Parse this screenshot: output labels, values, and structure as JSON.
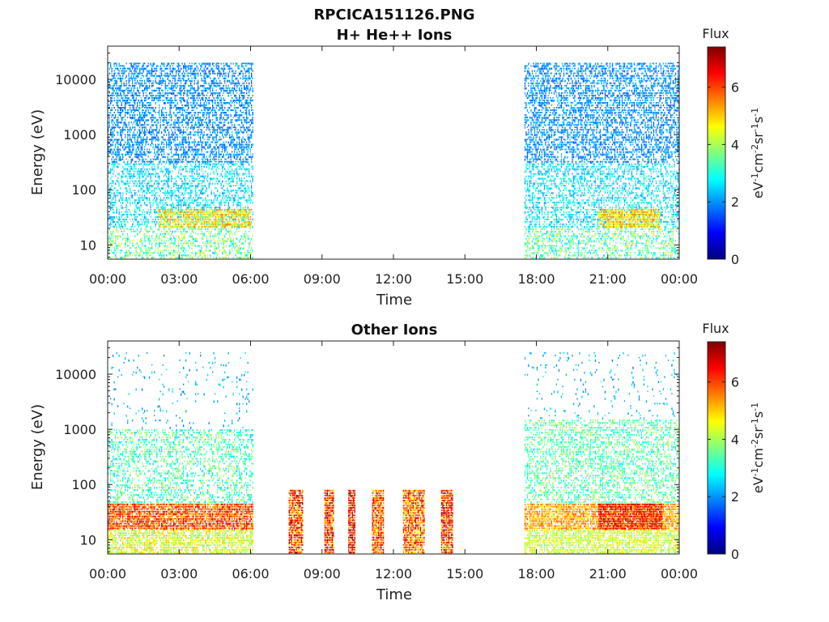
{
  "figure": {
    "title": "RPCICA151126.PNG"
  },
  "colormap": [
    "#00007f",
    "#0000ff",
    "#007fff",
    "#00ffff",
    "#7fff7f",
    "#ffff00",
    "#ff7f00",
    "#ff0000",
    "#7f0000"
  ],
  "chart_data": [
    {
      "type": "heatmap",
      "title": "H+ He++ Ions",
      "xlabel": "Time",
      "ylabel": "Energy (eV)",
      "x_ticks": [
        "00:00",
        "03:00",
        "06:00",
        "09:00",
        "12:00",
        "15:00",
        "18:00",
        "21:00",
        "00:00"
      ],
      "x_range_hours": [
        0,
        24
      ],
      "y_scale": "log",
      "y_range_ev": [
        5.5,
        40000
      ],
      "y_ticks": [
        {
          "label": "10",
          "value": 10
        },
        {
          "label": "100",
          "value": 100
        },
        {
          "label": "1000",
          "value": 1000
        },
        {
          "label": "10000",
          "value": 10000
        }
      ],
      "colorbar": {
        "label": "Flux",
        "units": "eV-1cm-2sr-1s-1",
        "range": [
          0,
          7.4
        ],
        "ticks": [
          "0",
          "2",
          "4",
          "6"
        ]
      },
      "data_intervals_hours": [
        [
          0,
          6.1
        ],
        [
          17.5,
          24
        ]
      ],
      "regions": [
        {
          "t_start": 0,
          "t_end": 6.1,
          "e_min": 5.5,
          "e_max": 20,
          "flux_min": 2.4,
          "flux_max": 4.6,
          "density": 0.45
        },
        {
          "t_start": 0,
          "t_end": 6.1,
          "e_min": 20,
          "e_max": 300,
          "flux_min": 2.0,
          "flux_max": 3.2,
          "density": 0.45
        },
        {
          "t_start": 0,
          "t_end": 6.1,
          "e_min": 300,
          "e_max": 20000,
          "flux_min": 1.5,
          "flux_max": 2.4,
          "density": 0.55
        },
        {
          "t_start": 2.1,
          "t_end": 6.0,
          "e_min": 20,
          "e_max": 45,
          "flux_min": 4.0,
          "flux_max": 5.6,
          "density": 0.8
        },
        {
          "t_start": 17.5,
          "t_end": 24,
          "e_min": 5.5,
          "e_max": 20,
          "flux_min": 2.4,
          "flux_max": 4.4,
          "density": 0.45
        },
        {
          "t_start": 17.5,
          "t_end": 24,
          "e_min": 20,
          "e_max": 300,
          "flux_min": 2.0,
          "flux_max": 3.2,
          "density": 0.45
        },
        {
          "t_start": 17.5,
          "t_end": 24,
          "e_min": 300,
          "e_max": 20000,
          "flux_min": 1.5,
          "flux_max": 2.4,
          "density": 0.55
        },
        {
          "t_start": 20.6,
          "t_end": 23.2,
          "e_min": 20,
          "e_max": 45,
          "flux_min": 4.2,
          "flux_max": 5.6,
          "density": 0.85
        }
      ]
    },
    {
      "type": "heatmap",
      "title": "Other Ions",
      "xlabel": "Time",
      "ylabel": "Energy (eV)",
      "x_ticks": [
        "00:00",
        "03:00",
        "06:00",
        "09:00",
        "12:00",
        "15:00",
        "18:00",
        "21:00",
        "00:00"
      ],
      "x_range_hours": [
        0,
        24
      ],
      "y_scale": "log",
      "y_range_ev": [
        5.5,
        40000
      ],
      "y_ticks": [
        {
          "label": "10",
          "value": 10
        },
        {
          "label": "100",
          "value": 100
        },
        {
          "label": "1000",
          "value": 1000
        },
        {
          "label": "10000",
          "value": 10000
        }
      ],
      "colorbar": {
        "label": "Flux",
        "units": "eV-1cm-2sr-1s-1",
        "range": [
          0,
          7.4
        ],
        "ticks": [
          "0",
          "2",
          "4",
          "6"
        ]
      },
      "data_intervals_hours": [
        [
          0,
          6.1
        ],
        [
          7.6,
          8.2
        ],
        [
          9.1,
          9.5
        ],
        [
          10.1,
          10.4
        ],
        [
          11.1,
          11.6
        ],
        [
          12.4,
          13.3
        ],
        [
          14.0,
          14.5
        ],
        [
          17.5,
          24
        ]
      ],
      "regions": [
        {
          "t_start": 0,
          "t_end": 6.1,
          "e_min": 5.5,
          "e_max": 15,
          "flux_min": 3.6,
          "flux_max": 5.2,
          "density": 0.75
        },
        {
          "t_start": 0,
          "t_end": 6.1,
          "e_min": 15,
          "e_max": 45,
          "flux_min": 5.0,
          "flux_max": 6.8,
          "density": 0.9
        },
        {
          "t_start": 0,
          "t_end": 6.1,
          "e_min": 45,
          "e_max": 1000,
          "flux_min": 2.4,
          "flux_max": 4.2,
          "density": 0.4
        },
        {
          "t_start": 0,
          "t_end": 6.1,
          "e_min": 1000,
          "e_max": 25000,
          "flux_min": 1.8,
          "flux_max": 2.6,
          "density": 0.05
        },
        {
          "t_start": 7.6,
          "t_end": 8.2,
          "e_min": 5.5,
          "e_max": 80,
          "flux_min": 4.6,
          "flux_max": 7.3,
          "density": 0.95
        },
        {
          "t_start": 9.1,
          "t_end": 9.5,
          "e_min": 5.5,
          "e_max": 80,
          "flux_min": 4.8,
          "flux_max": 7.3,
          "density": 0.95
        },
        {
          "t_start": 10.1,
          "t_end": 10.4,
          "e_min": 5.5,
          "e_max": 80,
          "flux_min": 5.2,
          "flux_max": 7.4,
          "density": 0.95
        },
        {
          "t_start": 11.1,
          "t_end": 11.6,
          "e_min": 5.5,
          "e_max": 80,
          "flux_min": 4.8,
          "flux_max": 7.0,
          "density": 0.95
        },
        {
          "t_start": 12.4,
          "t_end": 13.3,
          "e_min": 5.5,
          "e_max": 80,
          "flux_min": 4.2,
          "flux_max": 7.0,
          "density": 0.95
        },
        {
          "t_start": 14.0,
          "t_end": 14.5,
          "e_min": 5.5,
          "e_max": 80,
          "flux_min": 4.8,
          "flux_max": 7.3,
          "density": 0.95
        },
        {
          "t_start": 17.5,
          "t_end": 24,
          "e_min": 5.5,
          "e_max": 15,
          "flux_min": 3.6,
          "flux_max": 5.0,
          "density": 0.75
        },
        {
          "t_start": 17.5,
          "t_end": 24,
          "e_min": 15,
          "e_max": 45,
          "flux_min": 4.6,
          "flux_max": 6.0,
          "density": 0.85
        },
        {
          "t_start": 20.6,
          "t_end": 23.3,
          "e_min": 15,
          "e_max": 45,
          "flux_min": 5.6,
          "flux_max": 7.0,
          "density": 0.9
        },
        {
          "t_start": 17.5,
          "t_end": 24,
          "e_min": 45,
          "e_max": 1500,
          "flux_min": 2.6,
          "flux_max": 4.2,
          "density": 0.45
        },
        {
          "t_start": 17.5,
          "t_end": 24,
          "e_min": 1500,
          "e_max": 25000,
          "flux_min": 1.8,
          "flux_max": 2.6,
          "density": 0.05
        }
      ]
    }
  ]
}
